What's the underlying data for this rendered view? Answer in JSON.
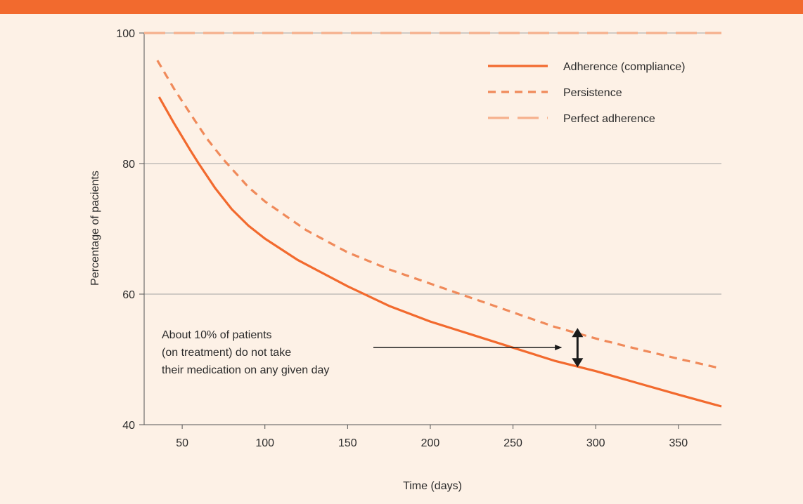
{
  "chart_data": {
    "type": "line",
    "title": "",
    "xlabel": "Time (days)",
    "ylabel": "Percentage of pacients",
    "xlim": [
      27,
      376
    ],
    "ylim": [
      40,
      100
    ],
    "x_ticks": [
      50,
      100,
      150,
      200,
      250,
      300,
      350
    ],
    "y_ticks": [
      40,
      60,
      80,
      100
    ],
    "grid": "horizontal",
    "legend_position": "top-right",
    "series": [
      {
        "name": "Adherence (compliance)",
        "style": "solid",
        "color": "#f26a2e",
        "x": [
          36,
          45,
          55,
          60,
          70,
          80,
          90,
          100,
          120,
          150,
          175,
          200,
          225,
          250,
          275,
          300,
          325,
          350,
          376
        ],
        "y": [
          90.2,
          86.2,
          82.0,
          80.0,
          76.2,
          73.0,
          70.5,
          68.5,
          65.2,
          61.2,
          58.2,
          55.8,
          53.8,
          51.8,
          49.8,
          48.2,
          46.4,
          44.6,
          42.8
        ]
      },
      {
        "name": "Persistence",
        "style": "short-dash",
        "color": "#f08a5a",
        "x": [
          35,
          45,
          55,
          65,
          75,
          90,
          100,
          125,
          150,
          175,
          200,
          225,
          250,
          275,
          300,
          325,
          350,
          376
        ],
        "y": [
          95.8,
          91.5,
          87.6,
          83.8,
          80.6,
          76.4,
          74.2,
          69.8,
          66.4,
          63.8,
          61.6,
          59.4,
          57.2,
          55.0,
          53.2,
          51.6,
          50.1,
          48.6
        ]
      },
      {
        "name": "Perfect adherence",
        "style": "long-dash",
        "color": "#f6b08c",
        "x": [
          27,
          376
        ],
        "y": [
          100,
          100
        ]
      }
    ],
    "annotations": [
      {
        "text": [
          "About 10% of patients",
          "(on treatment) do not take",
          "their medication on any given day"
        ],
        "arrow_to_x": 280,
        "bracket_x": 289,
        "bracket_y": [
          49.0,
          54.6
        ]
      }
    ]
  }
}
